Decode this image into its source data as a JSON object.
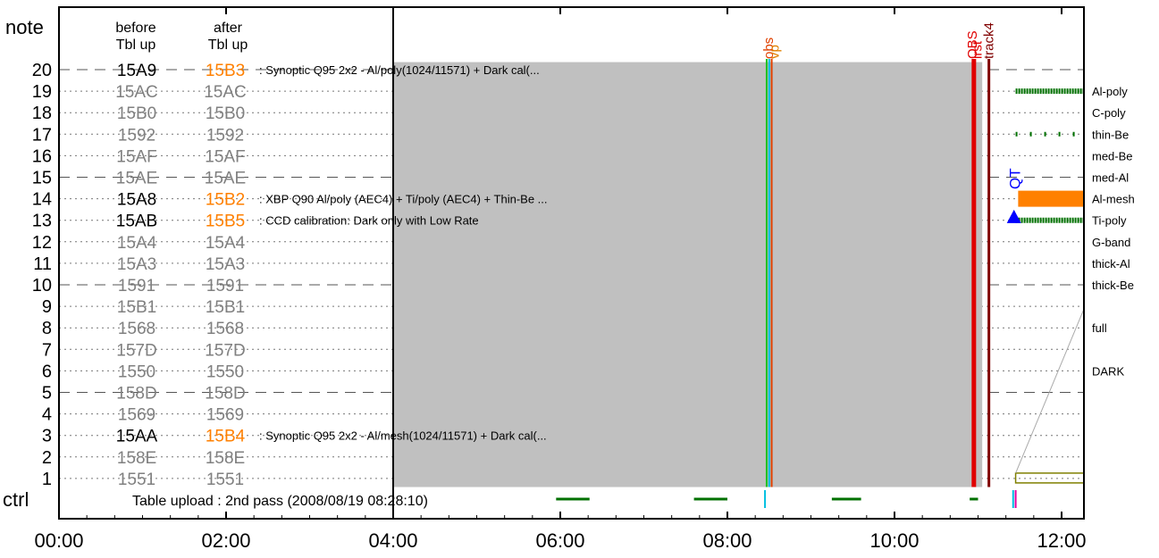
{
  "header": {
    "note_label": "note",
    "before_line1": "before",
    "before_line2": "Tbl up",
    "after_line1": "after",
    "after_line2": "Tbl up"
  },
  "ctrl": {
    "label": "ctrl",
    "text": "Table upload : 2nd pass (2008/08/19 08:28:10)"
  },
  "colors": {
    "frame": "#000000",
    "grey_fill": "#c0c0c0",
    "muted": "#808080",
    "orange": "#ff8000",
    "green": "#007000",
    "red": "#e00000",
    "darkred": "#800000",
    "blue": "#0000ff",
    "olive": "#808000",
    "cyan": "#00c0e0",
    "magenta": "#e000a0"
  },
  "chart_data": {
    "type": "timeline",
    "x_ticks": [
      "00:00",
      "02:00",
      "04:00",
      "06:00",
      "08:00",
      "10:00",
      "12:00"
    ],
    "xlim_hours": [
      0,
      12.3
    ],
    "rows": [
      {
        "note": "20",
        "before": "15A9",
        "after": "15B3",
        "active": true,
        "dashed": true,
        "desc": ": Synoptic Q95 2x2 - Al/poly(1024/11571) + Dark cal(...",
        "filter": ""
      },
      {
        "note": "19",
        "before": "15AC",
        "after": "15AC",
        "active": false,
        "dashed": false,
        "desc": "",
        "filter": "Al-poly"
      },
      {
        "note": "18",
        "before": "15B0",
        "after": "15B0",
        "active": false,
        "dashed": false,
        "desc": "",
        "filter": "C-poly"
      },
      {
        "note": "17",
        "before": "1592",
        "after": "1592",
        "active": false,
        "dashed": false,
        "desc": "",
        "filter": "thin-Be"
      },
      {
        "note": "16",
        "before": "15AF",
        "after": "15AF",
        "active": false,
        "dashed": false,
        "desc": "",
        "filter": "med-Be"
      },
      {
        "note": "15",
        "before": "15AE",
        "after": "15AE",
        "active": false,
        "dashed": true,
        "desc": "",
        "filter": "med-Al"
      },
      {
        "note": "14",
        "before": "15A8",
        "after": "15B2",
        "active": true,
        "dashed": false,
        "desc": ": XBP Q90 Al/poly (AEC4) + Ti/poly (AEC4) + Thin-Be ...",
        "filter": "Al-mesh"
      },
      {
        "note": "13",
        "before": "15AB",
        "after": "15B5",
        "active": true,
        "dashed": false,
        "desc": ": CCD calibration: Dark only with Low Rate",
        "filter": "Ti-poly"
      },
      {
        "note": "12",
        "before": "15A4",
        "after": "15A4",
        "active": false,
        "dashed": false,
        "desc": "",
        "filter": "G-band"
      },
      {
        "note": "11",
        "before": "15A3",
        "after": "15A3",
        "active": false,
        "dashed": false,
        "desc": "",
        "filter": "thick-Al"
      },
      {
        "note": "10",
        "before": "1591",
        "after": "1591",
        "active": false,
        "dashed": true,
        "desc": "",
        "filter": "thick-Be"
      },
      {
        "note": "9",
        "before": "15B1",
        "after": "15B1",
        "active": false,
        "dashed": false,
        "desc": "",
        "filter": ""
      },
      {
        "note": "8",
        "before": "1568",
        "after": "1568",
        "active": false,
        "dashed": false,
        "desc": "",
        "filter": "full"
      },
      {
        "note": "7",
        "before": "157D",
        "after": "157D",
        "active": false,
        "dashed": false,
        "desc": "",
        "filter": ""
      },
      {
        "note": "6",
        "before": "1550",
        "after": "1550",
        "active": false,
        "dashed": false,
        "desc": "",
        "filter": "DARK"
      },
      {
        "note": "5",
        "before": "158D",
        "after": "158D",
        "active": false,
        "dashed": true,
        "desc": "",
        "filter": ""
      },
      {
        "note": "4",
        "before": "1569",
        "after": "1569",
        "active": false,
        "dashed": false,
        "desc": "",
        "filter": ""
      },
      {
        "note": "3",
        "before": "15AA",
        "after": "15B4",
        "active": true,
        "dashed": false,
        "desc": ": Synoptic Q95 2x2 - Al/mesh(1024/11571) + Dark cal(...",
        "filter": ""
      },
      {
        "note": "2",
        "before": "158E",
        "after": "158E",
        "active": false,
        "dashed": false,
        "desc": "",
        "filter": ""
      },
      {
        "note": "1",
        "before": "1551",
        "after": "1551",
        "active": false,
        "dashed": false,
        "desc": "",
        "filter": ""
      }
    ],
    "grey_block": {
      "start": 4.0,
      "end": 11.05,
      "top_note": 20.35,
      "bottom_note": 0.6
    },
    "vlines": [
      {
        "time": 8.47,
        "color": "#20c020",
        "width": 2
      },
      {
        "time": 8.5,
        "color": "#00c0e0",
        "width": 2
      },
      {
        "time": 8.53,
        "color": "#e04000",
        "width": 2
      },
      {
        "time": 10.95,
        "color": "#e00000",
        "width": 5
      },
      {
        "time": 11.13,
        "color": "#800000",
        "width": 3
      }
    ],
    "vlabels": [
      {
        "text": "obs",
        "time": 8.49,
        "color": "#e04000"
      },
      {
        "text": "vp",
        "time": 8.56,
        "color": "#e08000"
      },
      {
        "text": "OBS",
        "time": 10.93,
        "color": "#e00000"
      },
      {
        "text": "irst",
        "time": 10.99,
        "color": "#e00000"
      },
      {
        "text": "track4",
        "time": 11.13,
        "color": "#800000"
      },
      {
        "text": "QT",
        "time": 11.45,
        "color": "#0000ff"
      }
    ],
    "ctrl_segments": [
      {
        "start": 5.95,
        "end": 6.35,
        "color": "#007000"
      },
      {
        "start": 7.6,
        "end": 8.0,
        "color": "#007000"
      },
      {
        "start": 9.25,
        "end": 9.6,
        "color": "#007000"
      },
      {
        "start": 10.9,
        "end": 11.0,
        "color": "#007000"
      }
    ],
    "ctrl_ticks": [
      {
        "time": 8.45,
        "color": "#00c0e0"
      },
      {
        "time": 11.42,
        "color": "#00c0e0"
      },
      {
        "time": 11.45,
        "color": "#e000a0"
      }
    ],
    "filter_marks": [
      {
        "note": 19,
        "start": 11.45,
        "end": 12.3,
        "style": "dense",
        "color": "#007000"
      },
      {
        "note": 17,
        "start": 11.45,
        "end": 12.2,
        "style": "sparse",
        "color": "#007000"
      },
      {
        "note": 14,
        "start": 11.48,
        "end": 12.3,
        "style": "solid",
        "color": "#ff8000"
      },
      {
        "note": 13,
        "start": 11.45,
        "end": 12.3,
        "style": "dense",
        "color": "#007000"
      },
      {
        "note": 1,
        "start": 11.45,
        "end": 12.3,
        "style": "box",
        "color": "#808000"
      }
    ],
    "triangle": {
      "time": 11.43,
      "note": 13.2
    },
    "diag_line": {
      "from_time": 11.45,
      "from_note": 1.0,
      "to_time": 12.3,
      "to_note": 9.0
    }
  }
}
